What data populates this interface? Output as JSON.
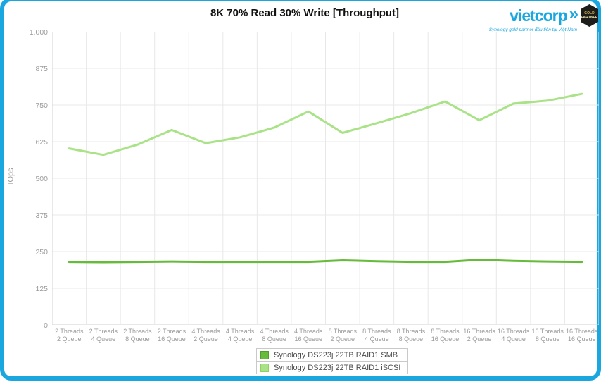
{
  "header": {
    "title": "8K 70% Read 30% Write [Throughput]",
    "logo": {
      "brand": "vietcorp",
      "arrow": "»",
      "badge_line1": "GOLD",
      "badge_line2": "PARTNER",
      "tagline": "Synology gold partner đầu tiên tại Việt Nam",
      "brand_color": "#1aa7e0"
    }
  },
  "colors": {
    "frame": "#1aa7e0",
    "grid": "#e8e8e8",
    "axis": "#d2d2d2",
    "tick_text": "#9b9b9b"
  },
  "chart_data": {
    "type": "line",
    "title": "8K 70% Read 30% Write [Throughput]",
    "xlabel": "",
    "ylabel": "IOps",
    "ylim": [
      0,
      1000
    ],
    "ytick_step": 125,
    "yticks": [
      "0",
      "125",
      "250",
      "375",
      "500",
      "625",
      "750",
      "875",
      "1,000"
    ],
    "grid": true,
    "legend_position": "bottom",
    "categories": [
      [
        "2 Threads",
        "2 Queue"
      ],
      [
        "2 Threads",
        "4 Queue"
      ],
      [
        "2 Threads",
        "8 Queue"
      ],
      [
        "2 Threads",
        "16 Queue"
      ],
      [
        "4 Threads",
        "2 Queue"
      ],
      [
        "4 Threads",
        "4 Queue"
      ],
      [
        "4 Threads",
        "8 Queue"
      ],
      [
        "4 Threads",
        "16 Queue"
      ],
      [
        "8 Threads",
        "2 Queue"
      ],
      [
        "8 Threads",
        "4 Queue"
      ],
      [
        "8 Threads",
        "8 Queue"
      ],
      [
        "8 Threads",
        "16 Queue"
      ],
      [
        "16 Threads",
        "2 Queue"
      ],
      [
        "16 Threads",
        "4 Queue"
      ],
      [
        "16 Threads",
        "8 Queue"
      ],
      [
        "16 Threads",
        "16 Queue"
      ]
    ],
    "series": [
      {
        "name": "Synology DS223j 22TB RAID1 SMB",
        "color": "#66bb3a",
        "swatch_border": "#4f9e2c",
        "values": [
          215,
          214,
          215,
          216,
          215,
          215,
          215,
          215,
          220,
          217,
          215,
          215,
          222,
          218,
          216,
          215
        ]
      },
      {
        "name": "Synology DS223j 22TB RAID1 iSCSI",
        "color": "#a9e287",
        "swatch_border": "#8fd163",
        "values": [
          602,
          580,
          615,
          665,
          620,
          640,
          673,
          728,
          655,
          688,
          722,
          762,
          698,
          755,
          765,
          788
        ]
      }
    ]
  }
}
